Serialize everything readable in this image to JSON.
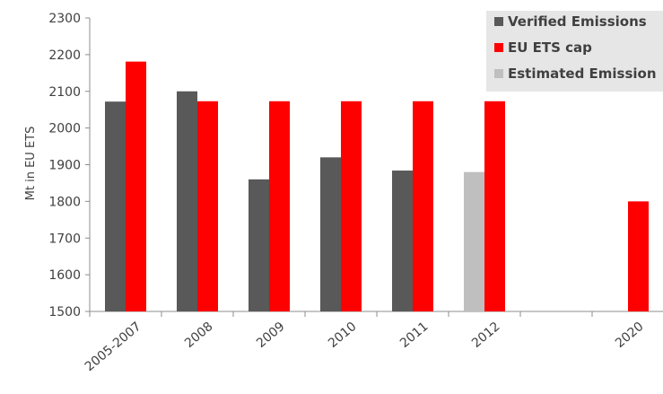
{
  "chart_data": {
    "type": "bar",
    "title": "",
    "xlabel": "",
    "ylabel": "Mt in EU ETS",
    "ylim": [
      1500,
      2300
    ],
    "yticks": [
      1500,
      1600,
      1700,
      1800,
      1900,
      2000,
      2100,
      2200,
      2300
    ],
    "categories": [
      "2005-2007",
      "2008",
      "2009",
      "2010",
      "2011",
      "2012",
      "",
      "2020"
    ],
    "series": [
      {
        "name": "Verified Emissions",
        "color": "#595959",
        "values": [
          2072,
          2100,
          1860,
          1920,
          1884,
          null,
          null,
          null
        ]
      },
      {
        "name": "EU ETS cap",
        "color": "#ff0000",
        "values": [
          2181,
          2073,
          2073,
          2073,
          2073,
          2073,
          null,
          1800
        ]
      },
      {
        "name": "Estimated Emission",
        "color": "#bfbfbf",
        "values": [
          null,
          null,
          null,
          null,
          null,
          1880,
          null,
          null
        ]
      }
    ],
    "grid": false,
    "legend_position": "top-right"
  }
}
